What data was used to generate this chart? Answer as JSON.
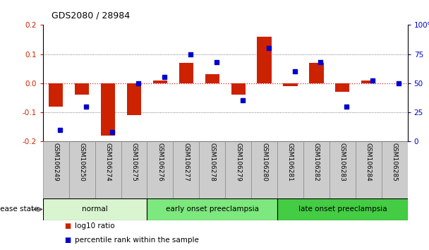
{
  "title": "GDS2080 / 28984",
  "samples": [
    "GSM106249",
    "GSM106250",
    "GSM106274",
    "GSM106275",
    "GSM106276",
    "GSM106277",
    "GSM106278",
    "GSM106279",
    "GSM106280",
    "GSM106281",
    "GSM106282",
    "GSM106283",
    "GSM106284",
    "GSM106285"
  ],
  "log10_ratio": [
    -0.08,
    -0.04,
    -0.18,
    -0.11,
    0.01,
    0.07,
    0.03,
    -0.04,
    0.16,
    -0.01,
    0.07,
    -0.03,
    0.01,
    0.0
  ],
  "percentile_rank": [
    10,
    30,
    8,
    50,
    55,
    75,
    68,
    35,
    80,
    60,
    68,
    30,
    52,
    50
  ],
  "ylim_left": [
    -0.2,
    0.2
  ],
  "ylim_right": [
    0,
    100
  ],
  "yticks_left": [
    -0.2,
    -0.1,
    0.0,
    0.1,
    0.2
  ],
  "yticks_right": [
    0,
    25,
    50,
    75,
    100
  ],
  "groups": [
    {
      "label": "normal",
      "start": 0,
      "end": 3,
      "color": "#d8f5d0"
    },
    {
      "label": "early onset preeclampsia",
      "start": 4,
      "end": 8,
      "color": "#7de87d"
    },
    {
      "label": "late onset preeclampsia",
      "start": 9,
      "end": 13,
      "color": "#44cc44"
    }
  ],
  "disease_state_label": "disease state",
  "legend_red": "log10 ratio",
  "legend_blue": "percentile rank within the sample",
  "bar_width": 0.55,
  "red_color": "#cc2200",
  "blue_color": "#0000cc",
  "zero_line_color": "#dd2222",
  "grid_color": "#555555",
  "bg_color": "#ffffff",
  "tick_label_bg": "#cccccc",
  "tick_label_border": "#888888"
}
